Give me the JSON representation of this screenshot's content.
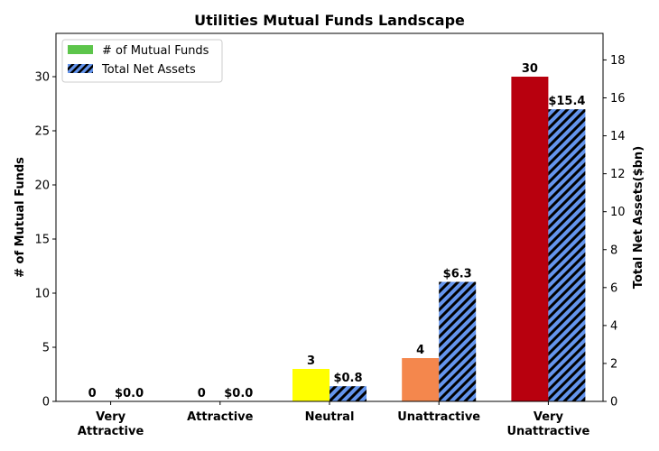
{
  "chart_data": {
    "type": "bar",
    "title": "Utilities Mutual Funds Landscape",
    "categories": [
      [
        "Very",
        "Attractive"
      ],
      [
        "Attractive"
      ],
      [
        "Neutral"
      ],
      [
        "Unattractive"
      ],
      [
        "Very",
        "Unattractive"
      ]
    ],
    "series": [
      {
        "name": "# of Mutual Funds",
        "axis": "left",
        "values": [
          0,
          0,
          3,
          4,
          30
        ],
        "labels": [
          "0",
          "0",
          "3",
          "4",
          "30"
        ],
        "colors": [
          "#5dc54b",
          "#5dc54b",
          "#ffff00",
          "#f4874d",
          "#b8000e"
        ],
        "legend_color": "#5dc54b"
      },
      {
        "name": "Total Net Assets",
        "axis": "right",
        "values": [
          0.0,
          0.0,
          0.8,
          6.3,
          15.4
        ],
        "labels": [
          "$0.0",
          "$0.0",
          "$0.8",
          "$6.3",
          "$15.4"
        ],
        "color": "#6495ed",
        "hatch": "diagonal"
      }
    ],
    "ylabel": "# of Mutual Funds",
    "y2label": "Total Net Assets($bn)",
    "ylim": [
      0,
      34
    ],
    "yticks": [
      0,
      5,
      10,
      15,
      20,
      25,
      30
    ],
    "y2lim": [
      0,
      19.4
    ],
    "y2ticks": [
      0,
      2,
      4,
      6,
      8,
      10,
      12,
      14,
      16,
      18
    ],
    "legend": "top-left",
    "grid": false
  }
}
